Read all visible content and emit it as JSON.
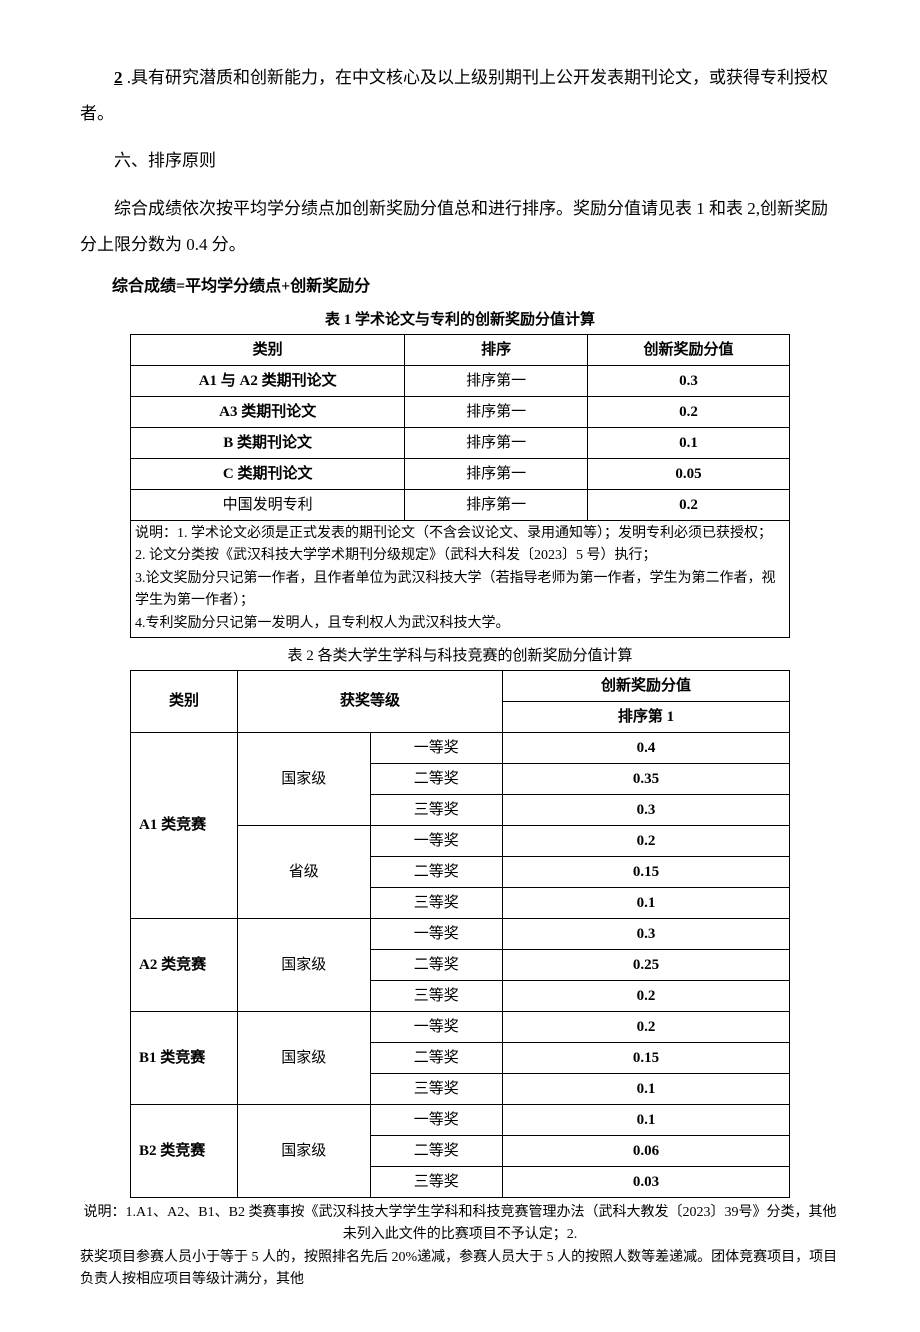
{
  "paragraphs": {
    "p1_num": "2",
    "p1_body": " .具有研究潜质和创新能力，在中文核心及以上级别期刊上公开发表期刊论文，或获得专利授权者。",
    "p2": "六、排序原则",
    "p3": "综合成绩依次按平均学分绩点加创新奖励分值总和进行排序。奖励分值请见表 1 和表 2,创新奖励分上限分数为 0.4 分。",
    "formula": "综合成绩=平均学分绩点+创新奖励分"
  },
  "table1": {
    "caption": "表 1 学术论文与专利的创新奖励分值计算",
    "headers": {
      "h1": "类别",
      "h2": "排序",
      "h3": "创新奖励分值"
    },
    "rows": [
      {
        "c1": "A1 与 A2 类期刊论文",
        "c2": "排序第一",
        "c3": "0.3"
      },
      {
        "c1": "A3 类期刊论文",
        "c2": "排序第一",
        "c3": "0.2"
      },
      {
        "c1": "B 类期刊论文",
        "c2": "排序第一",
        "c3": "0.1"
      },
      {
        "c1": "C 类期刊论文",
        "c2": "排序第一",
        "c3": "0.05"
      },
      {
        "c1": "中国发明专利",
        "c2": "排序第一",
        "c3": "0.2"
      }
    ],
    "notes": {
      "n1": "说明：1. 学术论文必须是正式发表的期刊论文（不含会议论文、录用通知等）；发明专利必须已获授权；",
      "n2": "2. 论文分类按《武汉科技大学学术期刊分级规定》（武科大科发〔2023〕5 号）执行；",
      "n3": "3.论文奖励分只记第一作者，且作者单位为武汉科技大学（若指导老师为第一作者，学生为第二作者，视学生为第一作者）；",
      "n4": "4.专利奖励分只记第一发明人，且专利权人为武汉科技大学。"
    }
  },
  "table2": {
    "caption": "表 2 各类大学生学科与科技竞赛的创新奖励分值计算",
    "headers": {
      "h1": "类别",
      "h2": "获奖等级",
      "h3": "创新奖励分值",
      "h3sub": "排序第 1"
    },
    "groups": [
      {
        "cat": "A1 类竞赛",
        "levels": [
          {
            "lvl": "国家级",
            "prizes": [
              {
                "p": "一等奖",
                "v": "0.4"
              },
              {
                "p": "二等奖",
                "v": "0.35"
              },
              {
                "p": "三等奖",
                "v": "0.3"
              }
            ]
          },
          {
            "lvl": "省级",
            "prizes": [
              {
                "p": "一等奖",
                "v": "0.2"
              },
              {
                "p": "二等奖",
                "v": "0.15"
              },
              {
                "p": "三等奖",
                "v": "0.1"
              }
            ]
          }
        ]
      },
      {
        "cat": "A2 类竞赛",
        "levels": [
          {
            "lvl": "国家级",
            "prizes": [
              {
                "p": "一等奖",
                "v": "0.3"
              },
              {
                "p": "二等奖",
                "v": "0.25"
              },
              {
                "p": "三等奖",
                "v": "0.2"
              }
            ]
          }
        ]
      },
      {
        "cat": "B1 类竞赛",
        "levels": [
          {
            "lvl": "国家级",
            "prizes": [
              {
                "p": "一等奖",
                "v": "0.2"
              },
              {
                "p": "二等奖",
                "v": "0.15"
              },
              {
                "p": "三等奖",
                "v": "0.1"
              }
            ]
          }
        ]
      },
      {
        "cat": "B2 类竞赛",
        "levels": [
          {
            "lvl": "国家级",
            "prizes": [
              {
                "p": "一等奖",
                "v": "0.1"
              },
              {
                "p": "二等奖",
                "v": "0.06"
              },
              {
                "p": "三等奖",
                "v": "0.03"
              }
            ]
          }
        ]
      }
    ],
    "notes": {
      "n1": "说明：1.A1、A2、B1、B2 类赛事按《武汉科技大学学生学科和科技竞赛管理办法（武科大教发〔2023〕39号》分类，其他未列入此文件的比赛项目不予认定；2.",
      "n2": "获奖项目参赛人员小于等于 5 人的，按照排名先后 20%递减，参赛人员大于 5 人的按照人数等差递减。团体竞赛项目，项目负责人按相应项目等级计满分，其他"
    }
  }
}
